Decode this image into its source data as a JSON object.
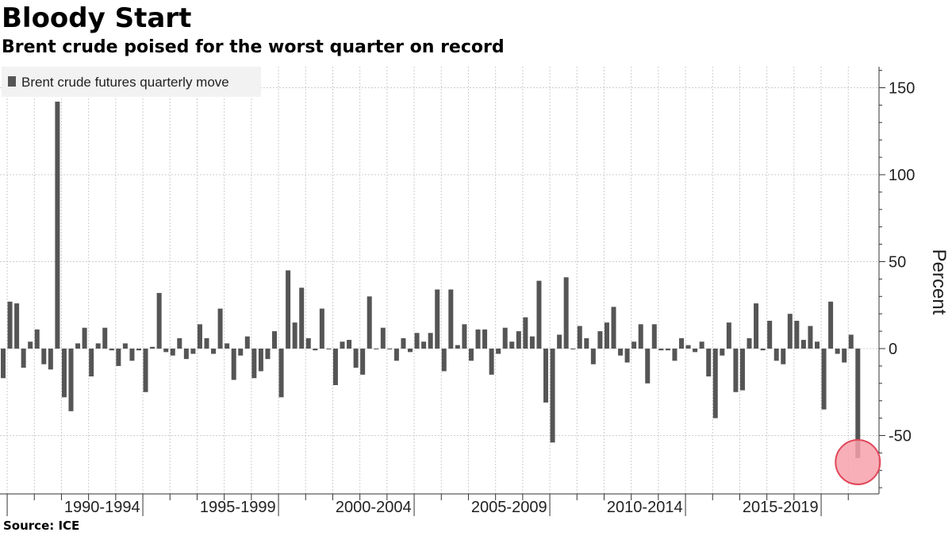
{
  "header": {
    "title": "Bloody Start",
    "subtitle": "Brent crude poised for the worst quarter on record"
  },
  "footer": {
    "source": "Source: ICE"
  },
  "colors": {
    "bar": "#555555",
    "grid": "#cccccc",
    "highlight_fill": "#f7a1ab",
    "highlight_stroke": "#e0485a"
  },
  "chart_data": {
    "type": "bar",
    "title": "Bloody Start",
    "subtitle": "Brent crude poised for the worst quarter on record",
    "ylabel": "Percent",
    "ylim": [
      -85,
      162
    ],
    "y_ticks": [
      150,
      100,
      50,
      0,
      -50
    ],
    "x_group_labels": [
      "1990-1994",
      "1995-1999",
      "2000-2004",
      "2005-2009",
      "2010-2014",
      "2015-2019"
    ],
    "legend": {
      "label": "Brent crude futures quarterly move",
      "placement": "top-left"
    },
    "highlight": {
      "description": "worst quarter on record",
      "index": 126
    },
    "series": [
      {
        "name": "Brent crude futures quarterly move",
        "start": "1988-Q4",
        "values": [
          -17,
          27,
          26,
          -11,
          4,
          11,
          -9,
          -12,
          142,
          -28,
          -36,
          3,
          12,
          -16,
          3,
          12,
          -1,
          -10,
          3,
          -7,
          -1,
          -25,
          1,
          32,
          -2,
          -4,
          6,
          -6,
          -3,
          14,
          6,
          -3,
          23,
          3,
          -18,
          -4,
          7,
          -17,
          -13,
          -6,
          10,
          -28,
          45,
          15,
          35,
          6,
          -1,
          23,
          0,
          -21,
          4,
          5,
          -11,
          -15,
          30,
          0,
          12,
          0,
          -7,
          6,
          -2,
          9,
          4,
          9,
          34,
          -13,
          34,
          2,
          14,
          -7,
          11,
          11,
          -15,
          -3,
          12,
          4,
          10,
          18,
          7,
          39,
          -31,
          -54,
          8,
          41,
          0,
          13,
          6,
          -9,
          10,
          15,
          24,
          -4,
          -8,
          4,
          14,
          -20,
          14,
          -1,
          -1,
          -7,
          6,
          2,
          -2,
          4,
          -16,
          -40,
          -4,
          15,
          -25,
          -24,
          6,
          26,
          -1,
          16,
          -7,
          -9,
          20,
          16,
          5,
          13,
          4,
          -35,
          27,
          -3,
          -8,
          8,
          -63
        ]
      }
    ]
  }
}
